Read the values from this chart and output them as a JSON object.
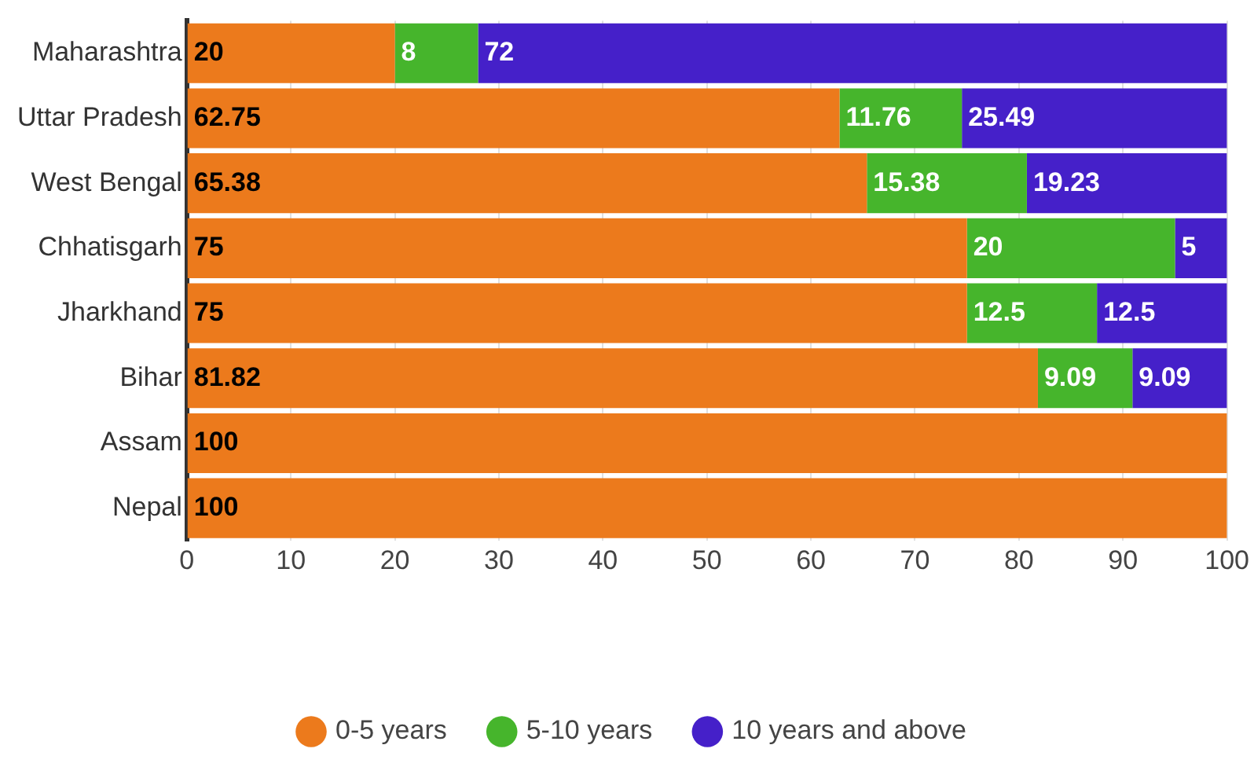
{
  "chart_data": {
    "type": "bar",
    "orientation": "horizontal",
    "stacked": true,
    "categories": [
      "Maharashtra",
      "Uttar Pradesh",
      "West Bengal",
      "Chhatisgarh",
      "Jharkhand",
      "Bihar",
      "Assam",
      "Nepal"
    ],
    "series": [
      {
        "name": "0-5 years",
        "color": "#ec7a1c",
        "values": [
          20,
          62.75,
          65.38,
          75,
          75,
          81.82,
          100,
          100
        ]
      },
      {
        "name": "5-10 years",
        "color": "#46b52c",
        "values": [
          8,
          11.76,
          15.38,
          20,
          12.5,
          9.09,
          null,
          null
        ]
      },
      {
        "name": "10 years and above",
        "color": "#4520c9",
        "values": [
          72,
          25.49,
          19.23,
          5,
          12.5,
          9.09,
          null,
          null
        ]
      }
    ],
    "xlim": [
      0,
      100
    ],
    "xticks": [
      0,
      10,
      20,
      30,
      40,
      50,
      60,
      70,
      80,
      90,
      100
    ],
    "grid": "x",
    "legend": "bottom",
    "data_labels": true
  }
}
